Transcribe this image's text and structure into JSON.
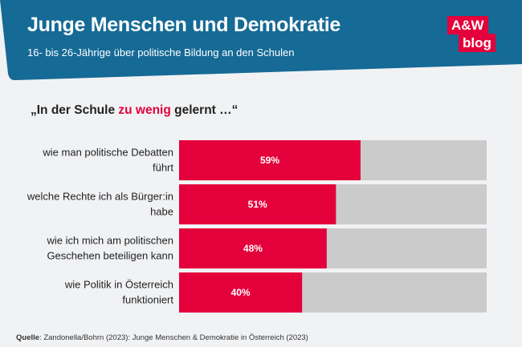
{
  "header": {
    "title": "Junge Menschen und Demokratie",
    "subtitle": "16- bis 26-Jährige über politische Bildung an den Schulen",
    "logo_line1": "A&W",
    "logo_line2": "blog"
  },
  "quote": {
    "prefix": "„In der Schule ",
    "highlight": "zu wenig",
    "suffix": " gelernt …“"
  },
  "colors": {
    "header_bg": "#156a96",
    "accent": "#e4003a",
    "bar_track": "#cbcbcb",
    "background": "#f1f2f4"
  },
  "chart_data": {
    "type": "bar",
    "orientation": "horizontal",
    "categories": [
      [
        "wie man politische Debatten",
        "führt"
      ],
      [
        "welche Rechte ich als Bürger:in",
        "habe"
      ],
      [
        "wie ich mich am politischen",
        "Geschehen beteiligen kann"
      ],
      [
        "wie Politik in Österreich",
        "funktioniert"
      ]
    ],
    "values": [
      59,
      51,
      48,
      40
    ],
    "value_labels": [
      "59%",
      "51%",
      "48%",
      "40%"
    ],
    "xlim": [
      0,
      100
    ],
    "grid": false,
    "legend": "none"
  },
  "source": {
    "label": "Quelle",
    "text": ": Zandonella/Bohrn (2023): Junge Menschen & Demokratie in Österreich (2023)"
  }
}
